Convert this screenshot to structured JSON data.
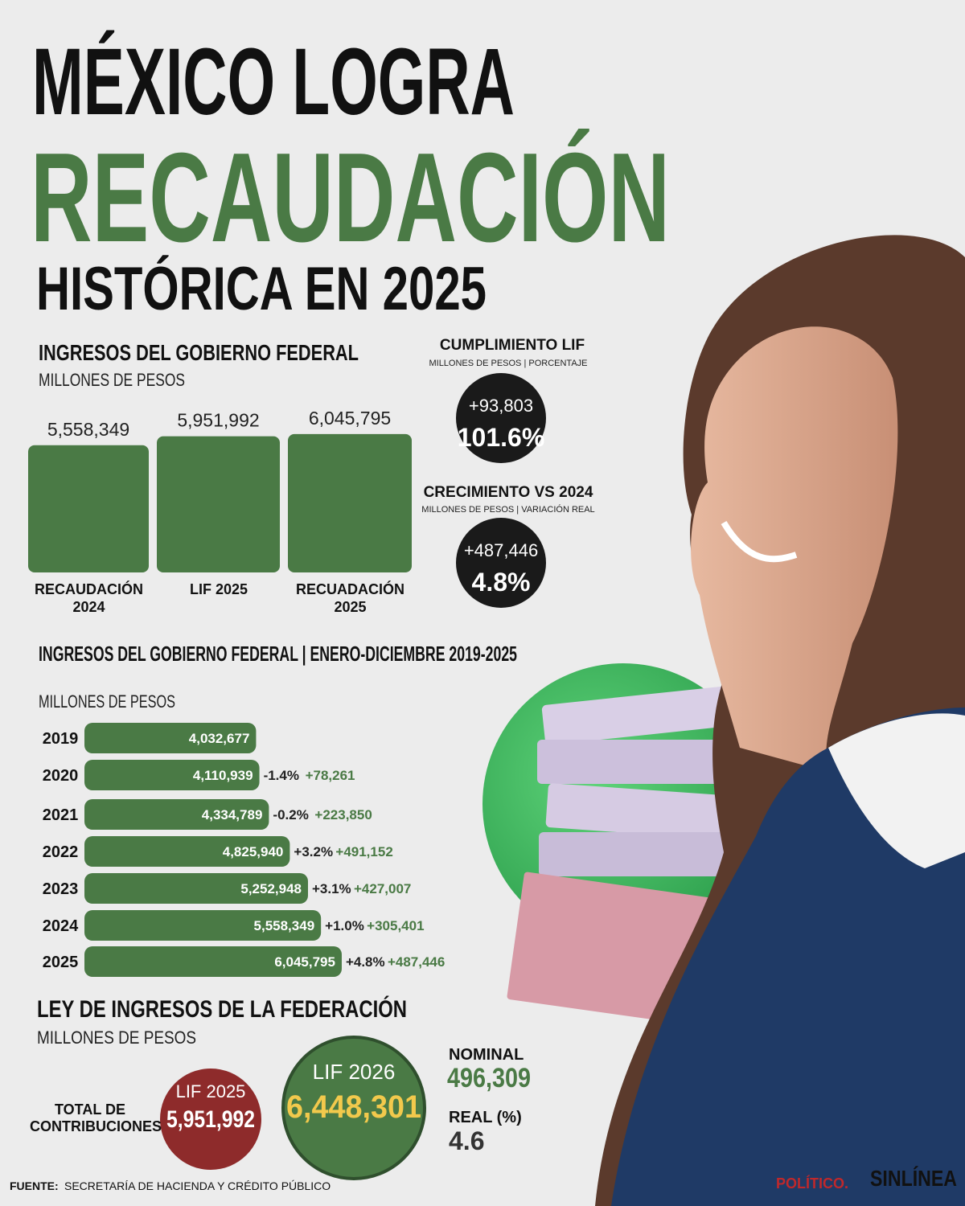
{
  "header": {
    "line1": "MÉXICO LOGRA",
    "line2": "RECAUDACIÓN",
    "line3": "HISTÓRICA EN 2025"
  },
  "chart_data": [
    {
      "type": "bar",
      "title": "INGRESOS DEL GOBIERNO FEDERAL",
      "subtitle": "MILLONES DE PESOS",
      "categories": [
        "RECAUDACIÓN 2024",
        "LIF 2025",
        "RECUADACIÓN 2025"
      ],
      "values": [
        5558349,
        5951992,
        6045795
      ],
      "value_labels": [
        "5,558,349",
        "5,951,992",
        "6,045,795"
      ],
      "color": "#4a7a45",
      "ylim": [
        0,
        6500000
      ]
    },
    {
      "type": "barh",
      "title": "INGRESOS DEL GOBIERNO FEDERAL | ENERO-DICIEMBRE 2019-2025",
      "subtitle": "MILLONES DE PESOS",
      "categories": [
        "2019",
        "2020",
        "2021",
        "2022",
        "2023",
        "2024",
        "2025"
      ],
      "values": [
        4032677,
        4110939,
        4334789,
        4825940,
        5252948,
        5558349,
        6045795
      ],
      "value_labels": [
        "4,032,677",
        "4,110,939",
        "4,334,789",
        "4,825,940",
        "5,252,948",
        "5,558,349",
        "6,045,795"
      ],
      "real_change": [
        null,
        "-1.4%",
        "-0.2%",
        "+3.2%",
        "+3.1%",
        "+1.0%",
        "+4.8%"
      ],
      "increment": [
        null,
        "+78,261",
        "+223,850",
        "+491,152",
        "+427,007",
        "+305,401",
        "+487,446"
      ],
      "color": "#4a7a45",
      "xlim": [
        0,
        6500000
      ]
    }
  ],
  "kpis": {
    "lif": {
      "title": "CUMPLIMIENTO LIF",
      "subtitle": "MILLONES DE PESOS | PORCENTAJE",
      "amount": "+93,803",
      "percent": "101.6%"
    },
    "growth": {
      "title": "CRECIMIENTO VS 2024",
      "subtitle": "MILLONES DE PESOS | VARIACIÓN REAL",
      "amount": "+487,446",
      "percent": "4.8%"
    }
  },
  "lif_section": {
    "title": "LEY DE INGRESOS DE LA FEDERACIÓN",
    "subtitle": "MILLONES DE PESOS",
    "total_label": "TOTAL DE CONTRIBUCIONES",
    "lif2025": {
      "label": "LIF 2025",
      "value": "5,951,992"
    },
    "lif2026": {
      "label": "LIF 2026",
      "value": "6,448,301"
    },
    "nominal": {
      "label": "NOMINAL",
      "value": "496,309"
    },
    "real": {
      "label": "REAL (%)",
      "value": "4.6"
    }
  },
  "footer": {
    "source_label": "FUENTE:",
    "source": "SECRETARÍA DE HACIENDA Y CRÉDITO PÚBLICO",
    "logo1": "POLÍTICO.",
    "logo2": "SINLÍNEA"
  }
}
